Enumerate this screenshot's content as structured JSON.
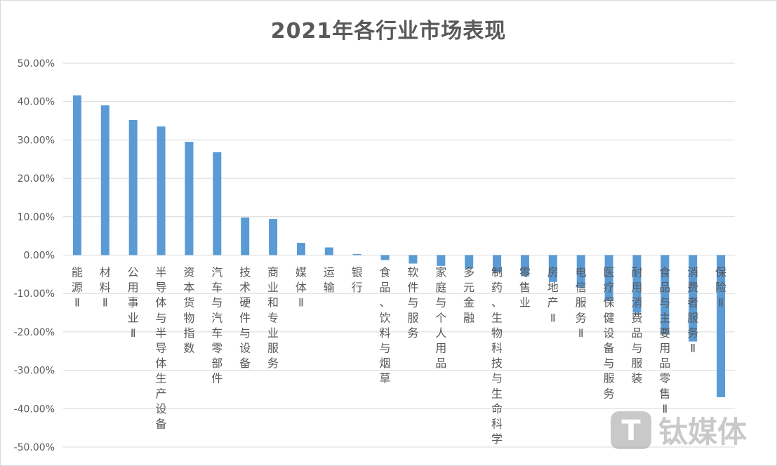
{
  "chart_data": {
    "type": "bar",
    "title": "2021年各行业市场表现",
    "xlabel": "",
    "ylabel": "",
    "ylim": [
      -0.5,
      0.5
    ],
    "ytick_values": [
      0.5,
      0.4,
      0.3,
      0.2,
      0.1,
      0.0,
      -0.1,
      -0.2,
      -0.3,
      -0.4,
      -0.5
    ],
    "ytick_labels": [
      "50.00%",
      "40.00%",
      "30.00%",
      "20.00%",
      "10.00%",
      "0.00%",
      "-10.00%",
      "-20.00%",
      "-30.00%",
      "-40.00%",
      "-50.00%"
    ],
    "grid": true,
    "bar_color": "#5b9bd5",
    "categories": [
      "能源Ⅱ",
      "材料Ⅱ",
      "公用事业Ⅱ",
      "半导体与半导体生产设备",
      "资本货物指数",
      "汽车与汽车零部件",
      "技术硬件与设备",
      "商业和专业服务",
      "媒体Ⅱ",
      "运输",
      "银行",
      "食品、饮料与烟草",
      "软件与服务",
      "家庭与个人用品",
      "多元金融",
      "制药、生物科技与生命科学",
      "零售业",
      "房地产Ⅱ",
      "电信服务Ⅱ",
      "医疗保健设备与服务",
      "耐用消费品与服装",
      "食品与主要用品零售Ⅱ",
      "消费者服务Ⅱ",
      "保险Ⅱ"
    ],
    "values": [
      0.416,
      0.39,
      0.352,
      0.335,
      0.295,
      0.268,
      0.098,
      0.094,
      0.032,
      0.02,
      0.003,
      -0.013,
      -0.022,
      -0.028,
      -0.035,
      -0.045,
      -0.055,
      -0.07,
      -0.085,
      -0.12,
      -0.15,
      -0.205,
      -0.225,
      -0.37
    ]
  },
  "watermark": {
    "text": "钛媒体",
    "logo_letter": "T",
    "icon": "tmt-logo-icon"
  }
}
